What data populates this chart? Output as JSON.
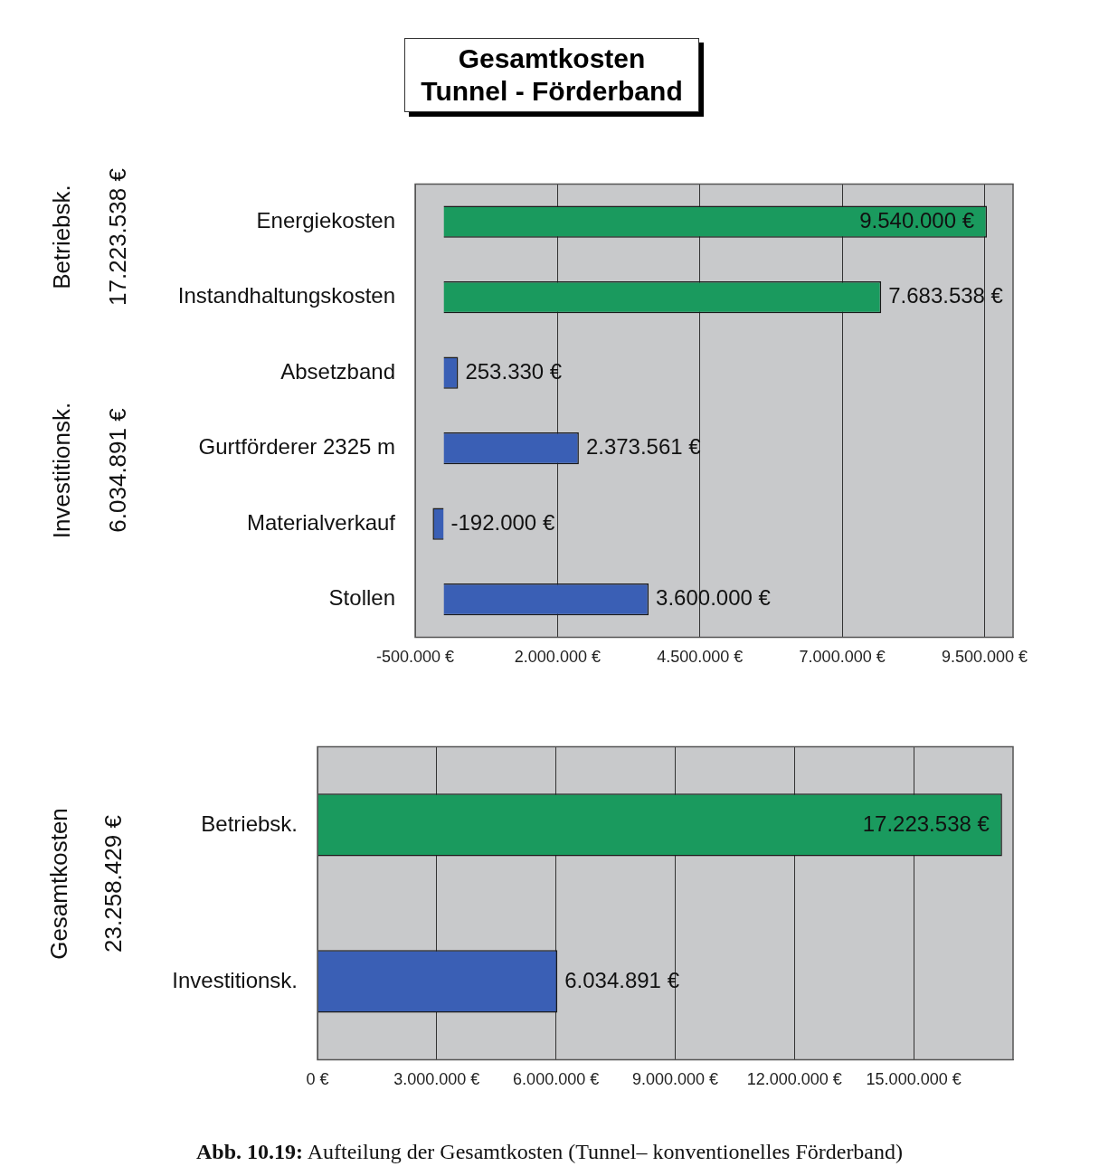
{
  "chart_data": [
    {
      "type": "bar",
      "orientation": "horizontal",
      "title": "Gesamtkosten\nTunnel - Förderband",
      "categories": [
        "Energiekosten",
        "Instandhaltungskosten",
        "Absetzband",
        "Gurtförderer 2325 m",
        "Materialverkauf",
        "Stollen"
      ],
      "values": [
        9540000,
        7683538,
        253330,
        2373561,
        -192000,
        3600000
      ],
      "colors": [
        "#1a9a5e",
        "#1a9a5e",
        "#3a5fb5",
        "#3a5fb5",
        "#3a5fb5",
        "#3a5fb5"
      ],
      "value_labels": [
        "9.540.000 €",
        "7.683.538 €",
        "253.330 €",
        "2.373.561 €",
        "-192.000 €",
        "3.600.000 €"
      ],
      "xlim": [
        -500000,
        10000000
      ],
      "xticks": [
        {
          "value": -500000,
          "label": "-500.000 €"
        },
        {
          "value": 2000000,
          "label": "2.000.000 €"
        },
        {
          "value": 4500000,
          "label": "4.500.000 €"
        },
        {
          "value": 7000000,
          "label": "7.000.000 €"
        },
        {
          "value": 9500000,
          "label": "9.500.000 €"
        }
      ],
      "grid": "x",
      "annotations": [
        "Betriebsk.",
        "17.223.538 €",
        "Investitionsk.",
        "6.034.891 €"
      ]
    },
    {
      "type": "bar",
      "orientation": "horizontal",
      "categories": [
        "Betriebsk.",
        "Investitionsk."
      ],
      "values": [
        17223538,
        6034891
      ],
      "colors": [
        "#1a9a5e",
        "#3a5fb5"
      ],
      "value_labels": [
        "17.223.538 €",
        "6.034.891 €"
      ],
      "xlim": [
        0,
        17500000
      ],
      "xticks": [
        {
          "value": 0,
          "label": "0 €"
        },
        {
          "value": 3000000,
          "label": "3.000.000 €"
        },
        {
          "value": 6000000,
          "label": "6.000.000 €"
        },
        {
          "value": 9000000,
          "label": "9.000.000 €"
        },
        {
          "value": 12000000,
          "label": "12.000.000 €"
        },
        {
          "value": 15000000,
          "label": "15.000.000 €"
        }
      ],
      "grid": "x",
      "annotations": [
        "Gesamtkosten",
        "23.258.429 €",
        "Abb. 10.19:",
        "Aufteilung der Gesamtkosten (Tunnel– konventionelles Förderband)"
      ]
    }
  ]
}
